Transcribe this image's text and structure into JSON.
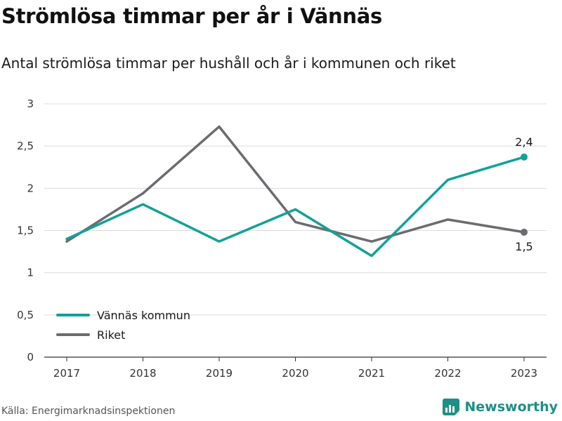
{
  "title": "Strömlösa timmar per år i Vännäs",
  "subtitle": "Antal strömlösa timmar per hushåll och år i kommunen och riket",
  "source": "Källa: Energimarknadsinspektionen",
  "brand": {
    "name": "Newsworthy",
    "icon": "newsworthy-logo-icon",
    "color": "#1f8f86"
  },
  "chart_data": {
    "type": "line",
    "x": [
      "2017",
      "2018",
      "2019",
      "2020",
      "2021",
      "2022",
      "2023"
    ],
    "ylim": [
      0,
      3
    ],
    "yticks": [
      0,
      0.5,
      1,
      1.5,
      2,
      2.5,
      3
    ],
    "ytick_labels": [
      "0",
      "0,5",
      "1",
      "1,5",
      "2",
      "2,5",
      "3"
    ],
    "grid": true,
    "legend_position": "bottom-left",
    "series": [
      {
        "name": "Vännäs kommun",
        "color": "#12a197",
        "values": [
          1.4,
          1.81,
          1.37,
          1.75,
          1.2,
          2.1,
          2.37
        ],
        "end_label": "2,4"
      },
      {
        "name": "Riket",
        "color": "#6b6b70",
        "values": [
          1.37,
          1.94,
          2.73,
          1.6,
          1.37,
          1.63,
          1.48
        ],
        "end_label": "1,5"
      }
    ]
  }
}
